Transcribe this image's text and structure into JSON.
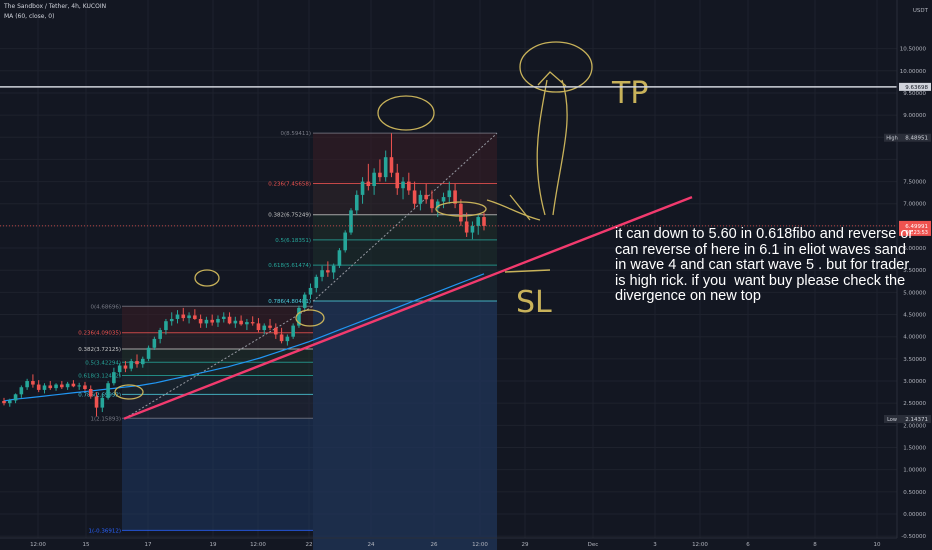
{
  "header": {
    "symbol_line": "The Sandbox / Tether, 4h, KUCOIN",
    "indicator_line": "MA (60, close, 0)"
  },
  "price_axis": {
    "currency": "USDT",
    "ticks": [
      "10.50000",
      "10.00000",
      "9.50000",
      "9.00000",
      "8.50000",
      "7.50000",
      "7.00000",
      "6.00000",
      "5.50000",
      "5.00000",
      "4.50000",
      "4.00000",
      "3.50000",
      "3.00000",
      "2.50000",
      "2.00000",
      "1.50000",
      "1.00000",
      "0.50000",
      "0.00000",
      "-0.50000",
      "-1.00000"
    ],
    "labels": {
      "tp_line": "9.63698",
      "high_tag": "High",
      "high_value": "8.48951",
      "current_value": "6.49991",
      "countdown": "01:23:53",
      "low_tag": "Low",
      "low_value": "2.14371"
    }
  },
  "time_axis": {
    "ticks": [
      "12:00",
      "15",
      "17",
      "19",
      "12:00",
      "22",
      "24",
      "26",
      "12:00",
      "29",
      "Dec",
      "3",
      "12:00",
      "6",
      "8",
      "10"
    ]
  },
  "annotations": {
    "tp": "TP",
    "sl": "SL",
    "note": "it can down to 5.60 in 0.618fibo and reverse or can reverse of here in 6.1 in eliot waves sand in wave 4 and can start wave 5 . but for trader is high rick. if you  want buy please check the divergence on new top"
  },
  "colors": {
    "background": "#131722",
    "bull": "#26a69a",
    "bear": "#ef5350",
    "ma": "#2196f3",
    "trendline": "#f23a6e",
    "drawing": "#c8b25a",
    "fib_zone": "#1e3a66"
  },
  "chart_data": {
    "type": "candlestick",
    "title": "The Sandbox / Tether, 4h, KUCOIN",
    "xlabel": "",
    "ylabel": "",
    "ylim": [
      -1.2,
      10.9
    ],
    "grid": true,
    "indicator": "MA (60, close, 0)",
    "fib_retracements": [
      {
        "name": "first",
        "levels": [
          {
            "label": "0(4.68696)",
            "value": 4.68696
          },
          {
            "label": "0.236(4.09035)",
            "value": 4.09035
          },
          {
            "label": "0.382(3.72125)",
            "value": 3.72125
          },
          {
            "label": "0.5(3.42294)",
            "value": 3.42294
          },
          {
            "label": "0.618(3.12462)",
            "value": 3.12462
          },
          {
            "label": "0.786(2.69992)",
            "value": 2.69992
          },
          {
            "label": "1(2.15893)",
            "value": 2.15893
          },
          {
            "label": "1(-0.36912)",
            "value": -0.36912
          }
        ]
      },
      {
        "name": "second",
        "levels": [
          {
            "label": "0(8.59411)",
            "value": 8.59411
          },
          {
            "label": "0.236(7.45658)",
            "value": 7.45658
          },
          {
            "label": "0.382(6.75249)",
            "value": 6.75249
          },
          {
            "label": "0.5(6.18351)",
            "value": 6.18351
          },
          {
            "label": "0.618(5.61474)",
            "value": 5.61474
          },
          {
            "label": "0.786(4.80481)",
            "value": 4.80481
          },
          {
            "label": "1(-1.04398)",
            "value": -1.04398
          }
        ]
      }
    ],
    "key_levels": {
      "tp": 9.63698,
      "high": 8.48951,
      "current": 6.49991,
      "low": 2.14371
    },
    "trendline": {
      "from": 2.15,
      "to": 7.15
    },
    "candles": [
      [
        2.55,
        2.62,
        2.45,
        2.5
      ],
      [
        2.5,
        2.6,
        2.42,
        2.56
      ],
      [
        2.56,
        2.72,
        2.5,
        2.7
      ],
      [
        2.7,
        2.9,
        2.62,
        2.86
      ],
      [
        2.86,
        3.05,
        2.8,
        3.0
      ],
      [
        3.0,
        3.15,
        2.85,
        2.92
      ],
      [
        2.92,
        3.02,
        2.75,
        2.8
      ],
      [
        2.8,
        2.95,
        2.72,
        2.9
      ],
      [
        2.9,
        3.0,
        2.8,
        2.84
      ],
      [
        2.84,
        2.95,
        2.78,
        2.92
      ],
      [
        2.92,
        3.0,
        2.82,
        2.86
      ],
      [
        2.86,
        2.98,
        2.8,
        2.94
      ],
      [
        2.94,
        3.02,
        2.86,
        2.88
      ],
      [
        2.88,
        2.96,
        2.8,
        2.9
      ],
      [
        2.9,
        2.98,
        2.78,
        2.82
      ],
      [
        2.82,
        2.9,
        2.6,
        2.65
      ],
      [
        2.65,
        2.75,
        2.2,
        2.4
      ],
      [
        2.4,
        2.7,
        2.3,
        2.62
      ],
      [
        2.62,
        3.0,
        2.58,
        2.95
      ],
      [
        2.95,
        3.3,
        2.9,
        3.2
      ],
      [
        3.2,
        3.4,
        3.1,
        3.35
      ],
      [
        3.35,
        3.45,
        3.2,
        3.28
      ],
      [
        3.28,
        3.5,
        3.22,
        3.45
      ],
      [
        3.45,
        3.6,
        3.3,
        3.38
      ],
      [
        3.38,
        3.55,
        3.3,
        3.5
      ],
      [
        3.5,
        3.8,
        3.45,
        3.75
      ],
      [
        3.75,
        4.0,
        3.7,
        3.95
      ],
      [
        3.95,
        4.2,
        3.85,
        4.15
      ],
      [
        4.15,
        4.4,
        4.05,
        4.35
      ],
      [
        4.35,
        4.55,
        4.25,
        4.4
      ],
      [
        4.4,
        4.6,
        4.3,
        4.5
      ],
      [
        4.5,
        4.65,
        4.35,
        4.42
      ],
      [
        4.42,
        4.55,
        4.3,
        4.48
      ],
      [
        4.48,
        4.62,
        4.38,
        4.4
      ],
      [
        4.4,
        4.5,
        4.2,
        4.3
      ],
      [
        4.3,
        4.45,
        4.2,
        4.38
      ],
      [
        4.38,
        4.5,
        4.25,
        4.32
      ],
      [
        4.32,
        4.48,
        4.22,
        4.4
      ],
      [
        4.4,
        4.55,
        4.32,
        4.45
      ],
      [
        4.45,
        4.55,
        4.28,
        4.3
      ],
      [
        4.3,
        4.45,
        4.2,
        4.36
      ],
      [
        4.36,
        4.48,
        4.25,
        4.28
      ],
      [
        4.28,
        4.4,
        4.15,
        4.33
      ],
      [
        4.33,
        4.46,
        4.25,
        4.3
      ],
      [
        4.3,
        4.42,
        4.1,
        4.15
      ],
      [
        4.15,
        4.3,
        4.05,
        4.25
      ],
      [
        4.25,
        4.4,
        4.15,
        4.2
      ],
      [
        4.2,
        4.3,
        3.95,
        4.05
      ],
      [
        4.05,
        4.2,
        3.85,
        3.9
      ],
      [
        3.9,
        4.05,
        3.8,
        4.0
      ],
      [
        4.0,
        4.3,
        3.95,
        4.25
      ],
      [
        4.25,
        4.7,
        4.2,
        4.65
      ],
      [
        4.65,
        5.0,
        4.6,
        4.95
      ],
      [
        4.95,
        5.2,
        4.85,
        5.1
      ],
      [
        5.1,
        5.4,
        5.0,
        5.35
      ],
      [
        5.35,
        5.6,
        5.25,
        5.5
      ],
      [
        5.5,
        5.7,
        5.35,
        5.45
      ],
      [
        5.45,
        5.65,
        5.3,
        5.6
      ],
      [
        5.6,
        6.0,
        5.55,
        5.95
      ],
      [
        5.95,
        6.4,
        5.9,
        6.35
      ],
      [
        6.35,
        6.9,
        6.3,
        6.85
      ],
      [
        6.85,
        7.3,
        6.75,
        7.2
      ],
      [
        7.2,
        7.6,
        7.0,
        7.5
      ],
      [
        7.5,
        7.9,
        7.3,
        7.4
      ],
      [
        7.4,
        7.8,
        7.2,
        7.7
      ],
      [
        7.7,
        8.0,
        7.5,
        7.6
      ],
      [
        7.6,
        8.2,
        7.5,
        8.05
      ],
      [
        8.05,
        8.59,
        7.6,
        7.7
      ],
      [
        7.7,
        7.9,
        7.2,
        7.35
      ],
      [
        7.35,
        7.6,
        7.1,
        7.5
      ],
      [
        7.5,
        7.7,
        7.2,
        7.3
      ],
      [
        7.3,
        7.5,
        6.9,
        7.0
      ],
      [
        7.0,
        7.3,
        6.85,
        7.2
      ],
      [
        7.2,
        7.45,
        7.0,
        7.1
      ],
      [
        7.1,
        7.3,
        6.8,
        6.9
      ],
      [
        6.9,
        7.1,
        6.7,
        7.05
      ],
      [
        7.05,
        7.25,
        6.9,
        7.15
      ],
      [
        7.15,
        7.5,
        7.0,
        7.3
      ],
      [
        7.3,
        7.45,
        6.9,
        7.0
      ],
      [
        7.0,
        7.1,
        6.5,
        6.6
      ],
      [
        6.6,
        6.8,
        6.25,
        6.35
      ],
      [
        6.35,
        6.6,
        6.2,
        6.5
      ],
      [
        6.5,
        6.75,
        6.3,
        6.7
      ],
      [
        6.7,
        6.8,
        6.4,
        6.5
      ]
    ],
    "ma60": [
      2.55,
      2.58,
      2.6,
      2.62,
      2.64,
      2.66,
      2.68,
      2.7,
      2.72,
      2.74,
      2.76,
      2.78,
      2.8,
      2.82,
      2.84,
      2.86,
      2.88,
      2.9,
      2.93,
      2.96,
      3.0,
      3.04,
      3.08,
      3.12,
      3.16,
      3.2,
      3.24,
      3.28,
      3.32,
      3.37,
      3.42,
      3.47,
      3.52,
      3.58,
      3.64,
      3.7,
      3.76,
      3.82,
      3.88,
      3.95,
      4.02,
      4.09,
      4.16,
      4.23,
      4.3,
      4.37,
      4.44,
      4.51,
      4.58,
      4.65,
      4.72,
      4.79,
      4.86,
      4.93,
      5.0,
      5.07,
      5.14,
      5.21,
      5.28,
      5.35,
      5.42
    ]
  }
}
